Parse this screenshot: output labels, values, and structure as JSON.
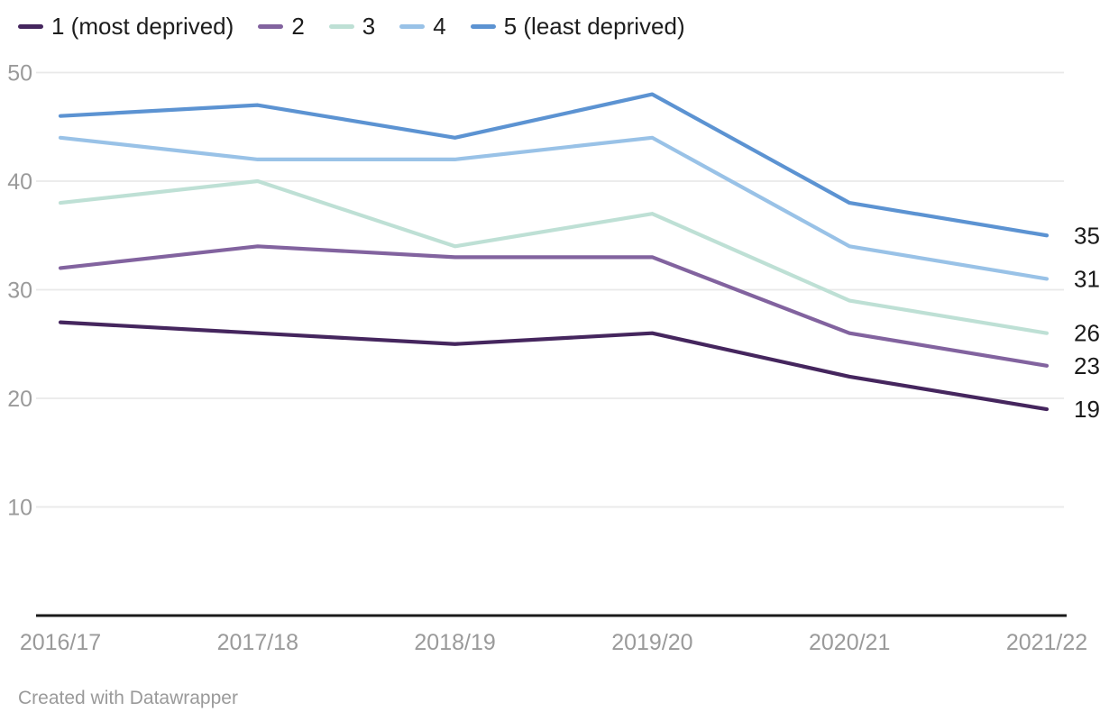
{
  "footer": {
    "text": "Created with Datawrapper"
  },
  "chart_data": {
    "type": "line",
    "categories": [
      "2016/17",
      "2017/18",
      "2018/19",
      "2019/20",
      "2020/21",
      "2021/22"
    ],
    "series": [
      {
        "name": "1 (most deprived)",
        "color": "#45265e",
        "values": [
          27,
          26,
          25,
          26,
          22,
          19
        ],
        "end_label": "19"
      },
      {
        "name": "2",
        "color": "#82639f",
        "values": [
          32,
          34,
          33,
          33,
          26,
          23
        ],
        "end_label": "23"
      },
      {
        "name": "3",
        "color": "#bee0d5",
        "values": [
          38,
          40,
          34,
          37,
          29,
          26
        ],
        "end_label": "26"
      },
      {
        "name": "4",
        "color": "#99c2e7",
        "values": [
          44,
          42,
          42,
          44,
          34,
          31
        ],
        "end_label": "31"
      },
      {
        "name": "5 (least deprived)",
        "color": "#5c93d2",
        "values": [
          46,
          47,
          44,
          48,
          38,
          35
        ],
        "end_label": "35"
      }
    ],
    "y_ticks": [
      10,
      20,
      30,
      40,
      50
    ],
    "ylim": [
      0,
      52
    ],
    "grid": "horizontal",
    "legend_position": "top-left",
    "colors": {
      "axis_label": "#9a9a9a",
      "grid_line": "#e9e9e9",
      "baseline": "#1a1a1a",
      "end_label": "#1a1a1a"
    }
  }
}
